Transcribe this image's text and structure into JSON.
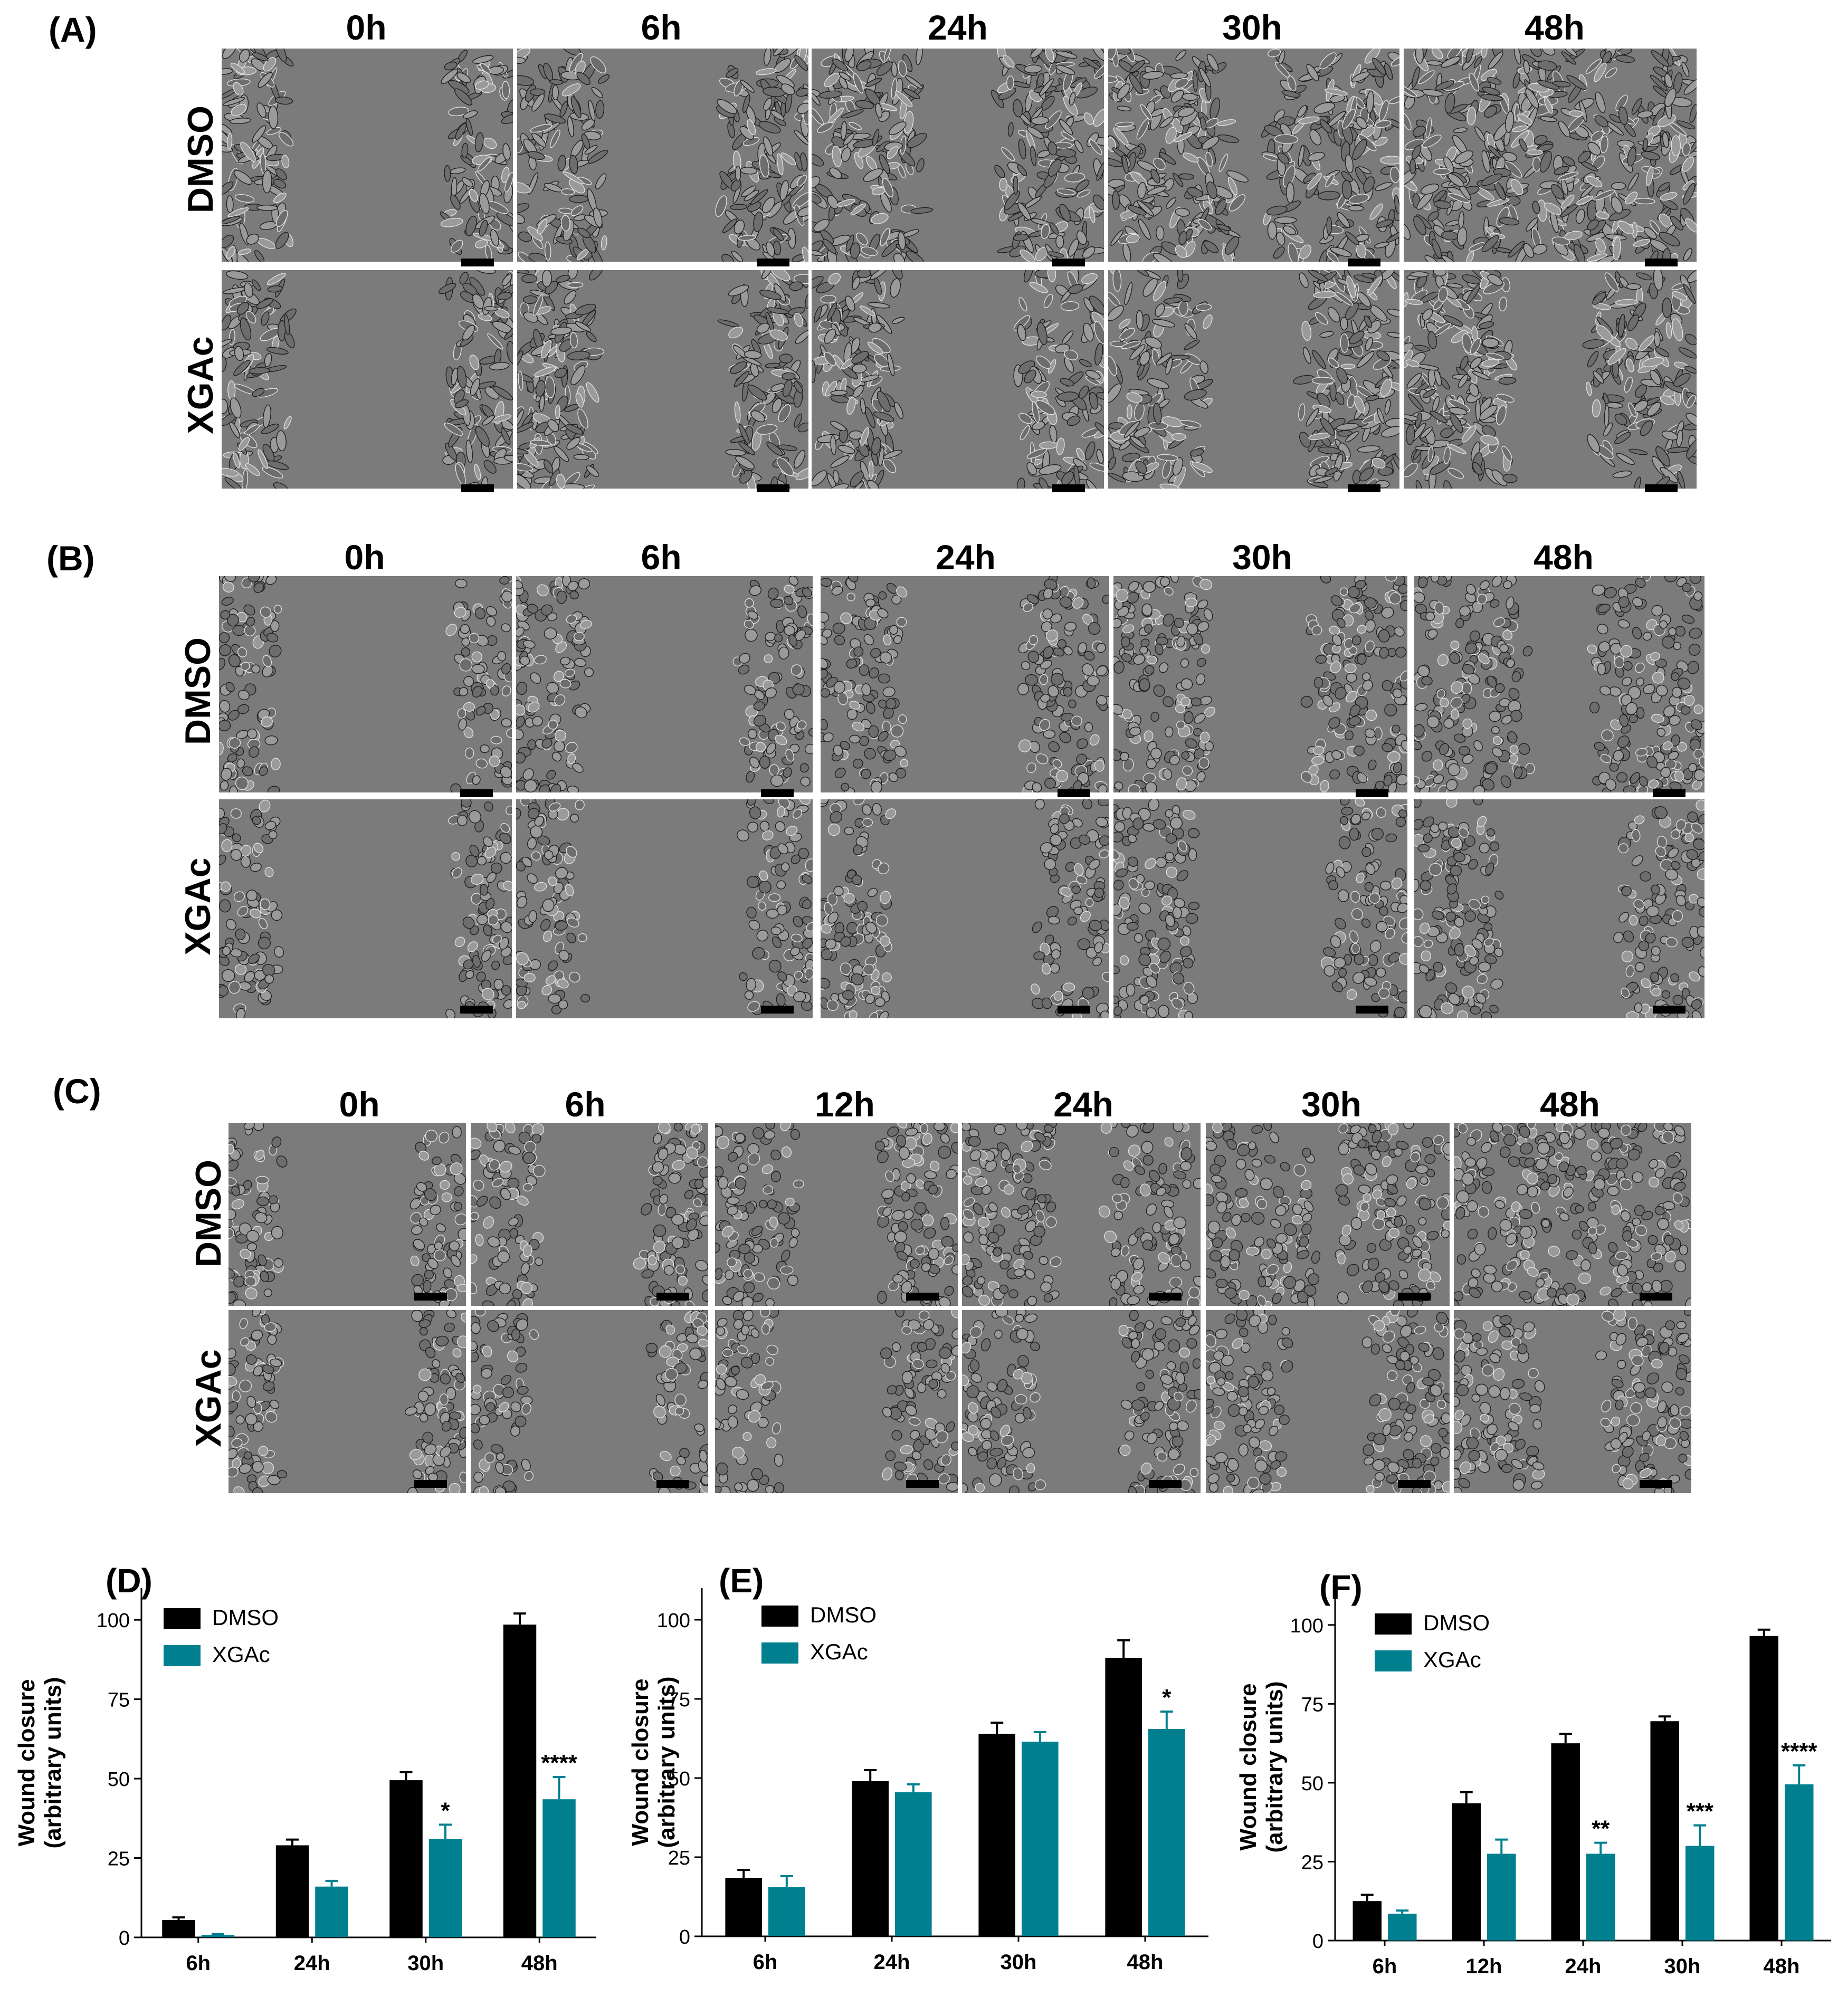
{
  "panels": {
    "A": {
      "letter": "(A)",
      "times": [
        "0h",
        "6h",
        "24h",
        "30h",
        "48h"
      ],
      "rows": [
        "DMSO",
        "XGAc"
      ]
    },
    "B": {
      "letter": "(B)",
      "times": [
        "0h",
        "6h",
        "24h",
        "30h",
        "48h"
      ],
      "rows": [
        "DMSO",
        "XGAc"
      ]
    },
    "C": {
      "letter": "(C)",
      "times": [
        "0h",
        "6h",
        "12h",
        "24h",
        "30h",
        "48h"
      ],
      "rows": [
        "DMSO",
        "XGAc"
      ]
    }
  },
  "colors": {
    "dmso": "#000000",
    "xgac": "#00808f",
    "micrograph_bg": "#7b7b7b",
    "cell_edge": "#1e1e1e"
  },
  "chart_data": [
    {
      "id": "D",
      "panel_label": "(D)",
      "type": "bar",
      "categories": [
        "6h",
        "24h",
        "30h",
        "48h"
      ],
      "series": [
        {
          "name": "DMSO",
          "values": [
            5.5,
            29,
            49.5,
            98.5
          ],
          "errors": [
            0.8,
            1.8,
            2.5,
            3.5
          ]
        },
        {
          "name": "XGAc",
          "values": [
            0.7,
            16,
            31,
            43.5
          ],
          "errors": [
            0.3,
            1.8,
            4.5,
            7
          ]
        }
      ],
      "significance": [
        "",
        "",
        "*",
        "****"
      ],
      "ylabel": "Wound closure\n(arbitrary units)",
      "ylim": [
        0,
        110
      ],
      "yticks": [
        0,
        25,
        50,
        75,
        100
      ],
      "legend_position": "top-left",
      "grid": false
    },
    {
      "id": "E",
      "panel_label": "(E)",
      "type": "bar",
      "categories": [
        "6h",
        "24h",
        "30h",
        "48h"
      ],
      "series": [
        {
          "name": "DMSO",
          "values": [
            18.5,
            49,
            64,
            88
          ],
          "errors": [
            2.5,
            3.5,
            3.5,
            5.5
          ]
        },
        {
          "name": "XGAc",
          "values": [
            15.5,
            45.5,
            61.5,
            65.5
          ],
          "errors": [
            3.5,
            2.5,
            3,
            5.5
          ]
        }
      ],
      "significance": [
        "",
        "",
        "",
        "*"
      ],
      "ylabel": "Wound closure\n(arbitrary units)",
      "ylim": [
        0,
        110
      ],
      "yticks": [
        0,
        25,
        50,
        75,
        100
      ],
      "legend_position": "top-left",
      "grid": false
    },
    {
      "id": "F",
      "panel_label": "(F)",
      "type": "bar",
      "categories": [
        "6h",
        "12h",
        "24h",
        "30h",
        "48h"
      ],
      "series": [
        {
          "name": "DMSO",
          "values": [
            12.5,
            43.5,
            62.5,
            69.5,
            96.5
          ],
          "errors": [
            2,
            3.5,
            3,
            1.5,
            2
          ]
        },
        {
          "name": "XGAc",
          "values": [
            8.5,
            27.5,
            27.5,
            30,
            49.5
          ],
          "errors": [
            1,
            4.5,
            3.5,
            6.5,
            6
          ]
        }
      ],
      "significance": [
        "",
        "",
        "**",
        "***",
        "****"
      ],
      "ylabel": "Wound closure\n(arbitrary units)",
      "ylim": [
        0,
        110
      ],
      "yticks": [
        0,
        25,
        50,
        75,
        100
      ],
      "legend_position": "top-left",
      "grid": false
    }
  ]
}
